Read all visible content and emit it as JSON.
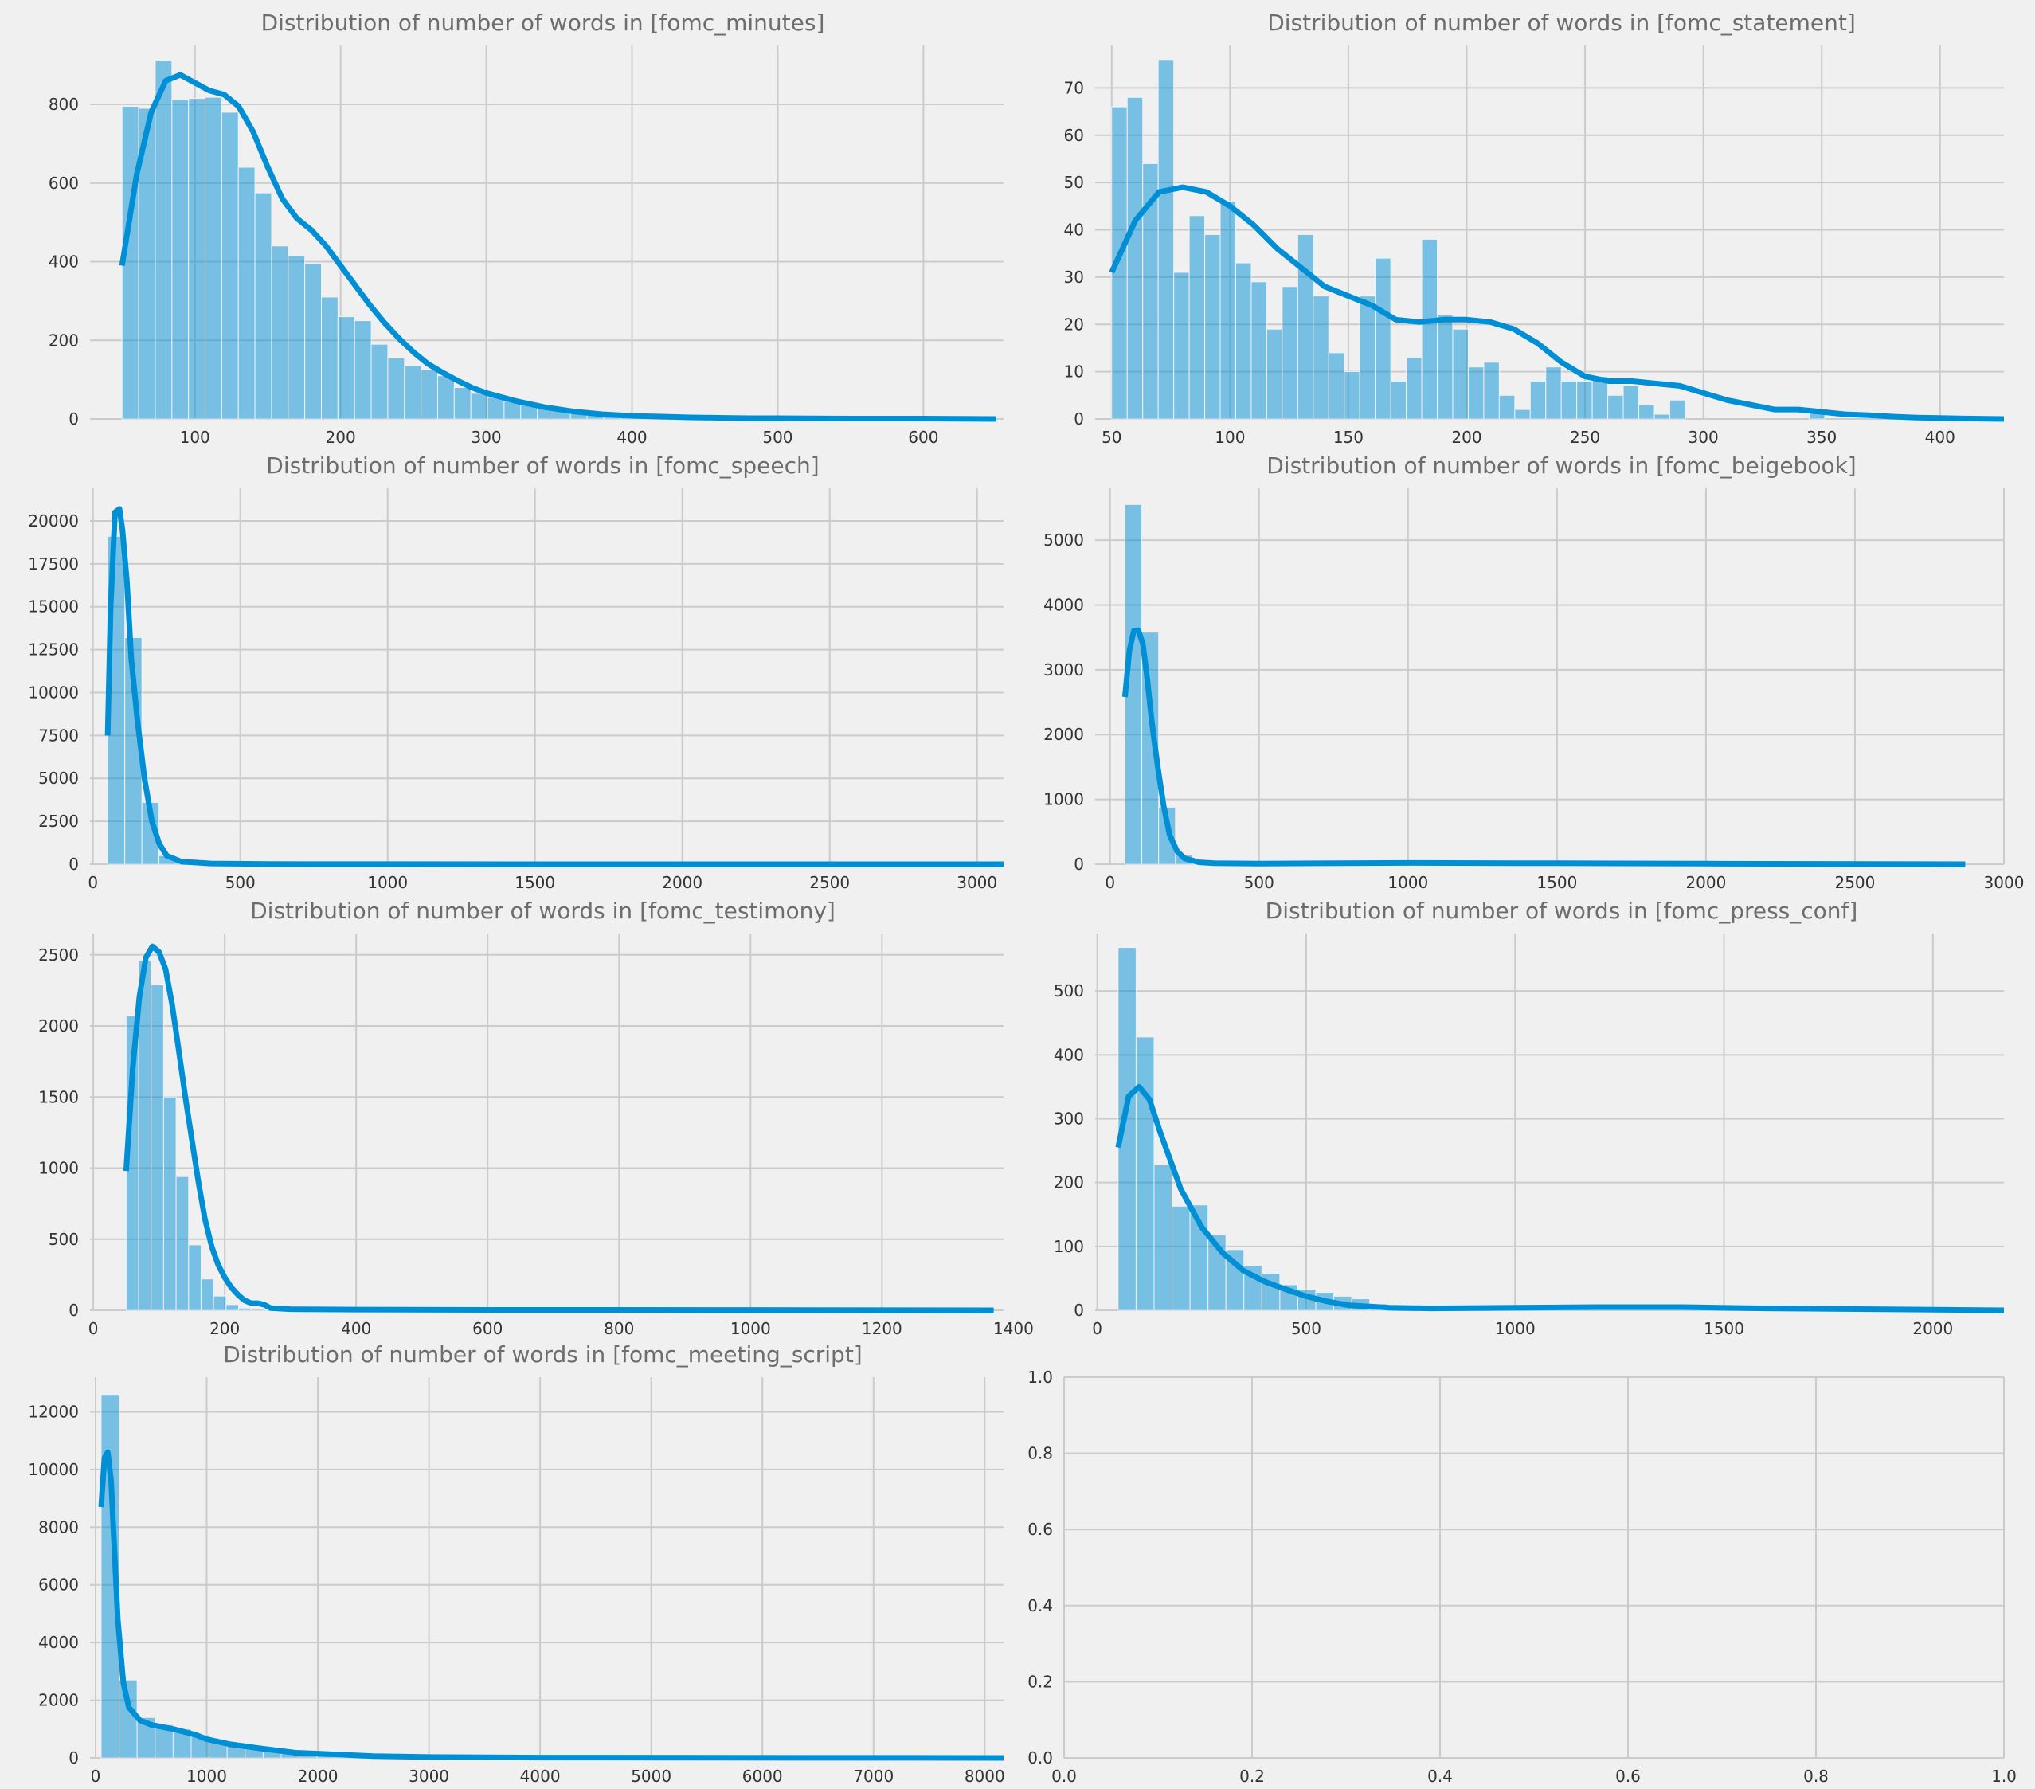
{
  "colors": {
    "background": "#f0f0f0",
    "series": "#008fd5",
    "grid": "#cbcbcb",
    "title": "#6d6d6d",
    "tick": "#333333"
  },
  "chart_data": [
    {
      "type": "histogram",
      "title": "Distribution of number of words in [fomc_minutes]",
      "xlim": [
        28,
        655
      ],
      "ylim": [
        0,
        950
      ],
      "xticks": [
        100,
        200,
        300,
        400,
        500,
        600
      ],
      "yticks": [
        0,
        200,
        400,
        600,
        800
      ],
      "grid": true,
      "bins": {
        "start": 50,
        "width": 11.4
      },
      "values": [
        795,
        790,
        912,
        812,
        815,
        818,
        780,
        640,
        575,
        440,
        415,
        395,
        310,
        260,
        250,
        190,
        155,
        135,
        125,
        110,
        80,
        65,
        55,
        45,
        38,
        30,
        22,
        15,
        12,
        9,
        7,
        5,
        4,
        3,
        3,
        2,
        2,
        1,
        1,
        1,
        1,
        0,
        0,
        0,
        0,
        0,
        0,
        0,
        0,
        0,
        0,
        0,
        0
      ],
      "kde": {
        "x": [
          50,
          60,
          70,
          80,
          90,
          100,
          110,
          120,
          130,
          140,
          150,
          160,
          170,
          180,
          190,
          200,
          210,
          220,
          230,
          240,
          250,
          260,
          270,
          280,
          290,
          300,
          320,
          340,
          360,
          380,
          400,
          420,
          440,
          460,
          480,
          500,
          550,
          600,
          650
        ],
        "y": [
          390,
          620,
          780,
          860,
          875,
          855,
          835,
          825,
          795,
          730,
          640,
          560,
          510,
          480,
          440,
          390,
          340,
          290,
          245,
          205,
          170,
          140,
          118,
          98,
          80,
          66,
          46,
          30,
          19,
          12,
          8,
          6,
          4,
          3,
          2,
          2,
          1,
          1,
          0
        ]
      }
    },
    {
      "type": "histogram",
      "title": "Distribution of number of words in [fomc_statement]",
      "xlim": [
        43,
        427
      ],
      "ylim": [
        0,
        79
      ],
      "xticks": [
        50,
        100,
        150,
        200,
        250,
        300,
        350,
        400
      ],
      "yticks": [
        0,
        10,
        20,
        30,
        40,
        50,
        60,
        70
      ],
      "grid": true,
      "bins": {
        "start": 50,
        "width": 6.55
      },
      "values": [
        66,
        68,
        54,
        76,
        31,
        43,
        39,
        46,
        33,
        29,
        19,
        28,
        39,
        26,
        14,
        10,
        26,
        34,
        8,
        13,
        38,
        22,
        19,
        11,
        12,
        5,
        2,
        8,
        11,
        8,
        8,
        9,
        5,
        7,
        3,
        1,
        4,
        0,
        0,
        0,
        0,
        0,
        0,
        0,
        0,
        2,
        0,
        0,
        0,
        0,
        0,
        0,
        0,
        0,
        0,
        0,
        0,
        0
      ],
      "kde": {
        "x": [
          50,
          60,
          70,
          80,
          90,
          100,
          110,
          120,
          130,
          140,
          150,
          160,
          170,
          180,
          190,
          200,
          210,
          220,
          230,
          240,
          250,
          260,
          270,
          280,
          290,
          300,
          310,
          320,
          330,
          340,
          350,
          360,
          370,
          380,
          390,
          400,
          410,
          427
        ],
        "y": [
          31,
          42,
          48,
          49,
          48,
          45,
          41,
          36,
          32,
          28,
          26,
          24,
          21,
          20.5,
          21,
          21,
          20.5,
          19,
          16,
          12,
          9,
          8,
          8,
          7.5,
          7,
          5.5,
          4,
          3,
          2,
          2,
          1.5,
          1,
          0.8,
          0.5,
          0.3,
          0.2,
          0.1,
          0
        ]
      }
    },
    {
      "type": "histogram",
      "title": "Distribution of number of words in [fomc_speech]",
      "xlim": [
        -10,
        3090
      ],
      "ylim": [
        0,
        21900
      ],
      "xticks": [
        0,
        500,
        1000,
        1500,
        2000,
        2500,
        3000
      ],
      "yticks": [
        0,
        2500,
        5000,
        7500,
        10000,
        12500,
        15000,
        17500,
        20000
      ],
      "grid": true,
      "bins": {
        "start": 50,
        "width": 58
      },
      "values": [
        19100,
        13200,
        3600,
        500,
        100,
        30,
        10,
        5,
        3,
        2,
        1,
        1,
        0,
        0,
        0,
        0,
        0,
        0,
        0,
        0,
        0,
        0,
        0,
        0,
        0,
        0,
        0,
        0,
        0,
        0,
        0,
        0,
        0,
        0,
        0,
        0,
        0,
        0,
        0,
        0,
        0,
        0,
        0,
        0,
        0,
        0,
        0,
        0,
        0,
        0,
        0,
        0
      ],
      "kde": {
        "x": [
          50,
          60,
          75,
          90,
          100,
          115,
          130,
          150,
          175,
          200,
          225,
          250,
          300,
          400,
          600,
          1000,
          2000,
          3090
        ],
        "y": [
          7500,
          15000,
          20500,
          20700,
          19500,
          16500,
          12000,
          8500,
          5000,
          2500,
          1200,
          500,
          150,
          40,
          10,
          3,
          1,
          0
        ]
      }
    },
    {
      "type": "histogram",
      "title": "Distribution of number of words in [fomc_beigebook]",
      "xlim": [
        -50,
        3000
      ],
      "ylim": [
        0,
        5800
      ],
      "xticks": [
        0,
        500,
        1000,
        1500,
        2000,
        2500,
        3000
      ],
      "yticks": [
        0,
        1000,
        2000,
        3000,
        4000,
        5000
      ],
      "grid": true,
      "bins": {
        "start": 50,
        "width": 56.5
      },
      "values": [
        5550,
        3580,
        880,
        140,
        25,
        10,
        5,
        3,
        2,
        2,
        1,
        1,
        1,
        0,
        0,
        0,
        0,
        0,
        0,
        0,
        0,
        0,
        0,
        0,
        0,
        0,
        0,
        0,
        0,
        0,
        0,
        0,
        0,
        0,
        0,
        0,
        0,
        0,
        0,
        0,
        0,
        0,
        0,
        0,
        0,
        0,
        0,
        0,
        0,
        0
      ],
      "kde": {
        "x": [
          50,
          65,
          80,
          95,
          110,
          125,
          140,
          160,
          180,
          200,
          225,
          250,
          300,
          350,
          500,
          1000,
          1500,
          2000,
          2870
        ],
        "y": [
          2580,
          3300,
          3600,
          3610,
          3400,
          2850,
          2200,
          1500,
          900,
          450,
          200,
          90,
          30,
          15,
          10,
          20,
          15,
          8,
          0
        ]
      }
    },
    {
      "type": "histogram",
      "title": "Distribution of number of words in [fomc_testimony]",
      "xlim": [
        -5,
        1385
      ],
      "ylim": [
        0,
        2650
      ],
      "xticks": [
        0,
        200,
        400,
        600,
        800,
        1000,
        1200,
        1400
      ],
      "yticks": [
        0,
        500,
        1000,
        1500,
        2000,
        2500
      ],
      "grid": true,
      "bins": {
        "start": 50,
        "width": 19
      },
      "values": [
        2070,
        2460,
        2290,
        1500,
        940,
        460,
        220,
        100,
        40,
        15,
        8,
        5,
        3,
        2,
        1,
        1,
        0,
        0,
        0,
        0,
        0,
        0,
        0,
        0,
        0,
        0,
        0,
        0,
        0,
        0,
        0,
        0,
        0,
        0,
        0,
        0,
        0,
        0,
        0,
        0,
        0,
        0,
        0,
        0,
        0,
        0,
        0,
        0,
        0,
        0,
        0,
        0,
        0,
        0,
        0,
        0,
        0,
        0,
        0,
        0,
        0,
        0,
        0,
        0,
        0,
        0,
        0,
        0,
        0,
        0
      ],
      "kde": {
        "x": [
          50,
          60,
          70,
          80,
          90,
          100,
          110,
          120,
          130,
          140,
          150,
          160,
          170,
          180,
          190,
          200,
          210,
          220,
          230,
          240,
          250,
          260,
          270,
          300,
          400,
          600,
          1000,
          1370
        ],
        "y": [
          980,
          1700,
          2200,
          2480,
          2560,
          2520,
          2400,
          2150,
          1830,
          1500,
          1200,
          900,
          640,
          450,
          320,
          230,
          160,
          110,
          70,
          50,
          50,
          40,
          15,
          8,
          5,
          3,
          2,
          0
        ]
      }
    },
    {
      "type": "histogram",
      "title": "Distribution of number of words in [fomc_press_conf]",
      "xlim": [
        -5,
        2170
      ],
      "ylim": [
        0,
        590
      ],
      "xticks": [
        0,
        500,
        1000,
        1500,
        2000
      ],
      "yticks": [
        0,
        100,
        200,
        300,
        400,
        500
      ],
      "grid": true,
      "bins": {
        "start": 50,
        "width": 43
      },
      "values": [
        568,
        428,
        228,
        163,
        165,
        118,
        95,
        70,
        58,
        40,
        32,
        28,
        22,
        18,
        10,
        5,
        3,
        2,
        1,
        1,
        0,
        0,
        0,
        0,
        0,
        0,
        0,
        0,
        0,
        0,
        0,
        0,
        0,
        0,
        0,
        0,
        0,
        0,
        0,
        0,
        0,
        0,
        0,
        0,
        0,
        0,
        0,
        0,
        0,
        0
      ],
      "kde": {
        "x": [
          50,
          75,
          100,
          125,
          150,
          200,
          250,
          300,
          350,
          400,
          450,
          500,
          550,
          600,
          700,
          800,
          1000,
          1200,
          1400,
          1600,
          2000,
          2170
        ],
        "y": [
          255,
          335,
          350,
          330,
          280,
          190,
          130,
          90,
          62,
          45,
          33,
          22,
          14,
          8,
          4,
          3,
          4,
          5,
          5,
          3,
          1,
          0
        ]
      }
    },
    {
      "type": "histogram",
      "title": "Distribution of number of words in [fomc_meeting_script]",
      "xlim": [
        -50,
        8170
      ],
      "ylim": [
        0,
        13200
      ],
      "xticks": [
        0,
        1000,
        2000,
        3000,
        4000,
        5000,
        6000,
        7000,
        8000
      ],
      "yticks": [
        0,
        2000,
        4000,
        6000,
        8000,
        10000,
        12000
      ],
      "grid": true,
      "bins": {
        "start": 50,
        "width": 162
      },
      "values": [
        12600,
        2700,
        1400,
        1150,
        1000,
        800,
        600,
        450,
        350,
        250,
        180,
        130,
        100,
        80,
        60,
        45,
        30,
        20,
        15,
        10,
        6,
        4,
        3,
        2,
        1,
        1,
        0,
        0,
        0,
        0,
        0,
        0,
        0,
        0,
        0,
        0,
        0,
        0,
        0,
        0,
        0,
        0,
        0,
        0,
        0,
        0,
        0,
        0,
        0,
        0
      ],
      "kde": {
        "x": [
          50,
          80,
          110,
          140,
          170,
          200,
          250,
          300,
          400,
          500,
          700,
          900,
          1000,
          1200,
          1500,
          1800,
          2000,
          2500,
          3000,
          4000,
          8170
        ],
        "y": [
          8700,
          10400,
          10600,
          9600,
          7200,
          4800,
          2600,
          1750,
          1300,
          1150,
          1000,
          800,
          650,
          480,
          320,
          180,
          150,
          60,
          30,
          10,
          0
        ]
      }
    },
    {
      "type": "empty",
      "title": "",
      "xlim": [
        0,
        1
      ],
      "ylim": [
        0,
        1
      ],
      "xticks": [
        0.0,
        0.2,
        0.4,
        0.6,
        0.8,
        1.0
      ],
      "yticks": [
        0.0,
        0.2,
        0.4,
        0.6,
        0.8,
        1.0
      ],
      "grid": true
    }
  ]
}
